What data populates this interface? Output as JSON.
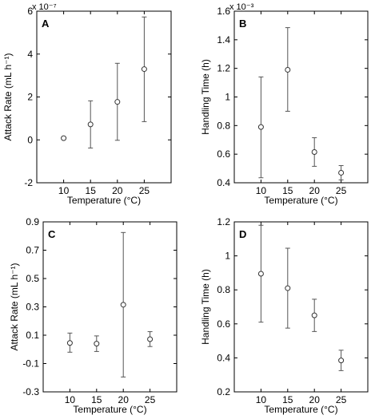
{
  "chart_data": [
    {
      "type": "scatter",
      "panel_label": "A",
      "xlabel": "Temperature (°C)",
      "ylabel": "Attack Rate (mL h⁻¹)",
      "exponent": "x 10⁻⁷",
      "x": [
        10,
        15,
        20,
        25
      ],
      "y": [
        0.08,
        0.72,
        1.77,
        3.3
      ],
      "err_low": [
        0.08,
        -0.38,
        -0.02,
        0.85
      ],
      "err_high": [
        0.08,
        1.82,
        3.57,
        5.73
      ],
      "xlim": [
        5,
        30
      ],
      "ylim": [
        -2,
        6
      ],
      "xticks": [
        "10",
        "15",
        "20",
        "25"
      ],
      "yticks": [
        "-2",
        "0",
        "2",
        "4",
        "6"
      ],
      "ytick_values": [
        -2,
        0,
        2,
        4,
        6
      ]
    },
    {
      "type": "scatter",
      "panel_label": "B",
      "xlabel": "Temperature (°C)",
      "ylabel": "Handling Time (h)",
      "exponent": "x 10⁻³",
      "x": [
        10,
        15,
        20,
        25
      ],
      "y": [
        0.79,
        1.19,
        0.615,
        0.47
      ],
      "err_low": [
        0.435,
        0.9,
        0.515,
        0.42
      ],
      "err_high": [
        1.14,
        1.485,
        0.715,
        0.52
      ],
      "xlim": [
        5,
        30
      ],
      "ylim": [
        0.4,
        1.6
      ],
      "xticks": [
        "10",
        "15",
        "20",
        "25"
      ],
      "yticks": [
        "0.4",
        "0.6",
        "0.8",
        "1",
        "1.2",
        "1.4",
        "1.6"
      ],
      "ytick_values": [
        0.4,
        0.6,
        0.8,
        1.0,
        1.2,
        1.4,
        1.6
      ]
    },
    {
      "type": "scatter",
      "panel_label": "C",
      "xlabel": "Temperature (°C)",
      "ylabel": "Attack Rate (mL h⁻¹)",
      "exponent": "",
      "x": [
        10,
        15,
        20,
        25
      ],
      "y": [
        0.045,
        0.04,
        0.315,
        0.072
      ],
      "err_low": [
        -0.02,
        -0.015,
        -0.195,
        0.02
      ],
      "err_high": [
        0.115,
        0.095,
        0.825,
        0.125
      ],
      "xlim": [
        5,
        30
      ],
      "ylim": [
        -0.3,
        0.9
      ],
      "xticks": [
        "10",
        "15",
        "20",
        "25"
      ],
      "yticks": [
        "-0.3",
        "-0.1",
        "0.1",
        "0.3",
        "0.5",
        "0.7",
        "0.9"
      ],
      "ytick_values": [
        -0.3,
        -0.1,
        0.1,
        0.3,
        0.5,
        0.7,
        0.9
      ]
    },
    {
      "type": "scatter",
      "panel_label": "D",
      "xlabel": "Temperature (°C)",
      "ylabel": "Handling Time (h)",
      "exponent": "",
      "x": [
        10,
        15,
        20,
        25
      ],
      "y": [
        0.895,
        0.81,
        0.65,
        0.385
      ],
      "err_low": [
        0.61,
        0.575,
        0.555,
        0.325
      ],
      "err_high": [
        1.18,
        1.045,
        0.745,
        0.445
      ],
      "xlim": [
        5,
        30
      ],
      "ylim": [
        0.2,
        1.2
      ],
      "xticks": [
        "10",
        "15",
        "20",
        "25"
      ],
      "yticks": [
        "0.2",
        "0.4",
        "0.6",
        "0.8",
        "1",
        "1.2"
      ],
      "ytick_values": [
        0.2,
        0.4,
        0.6,
        0.8,
        1.0,
        1.2
      ]
    }
  ]
}
